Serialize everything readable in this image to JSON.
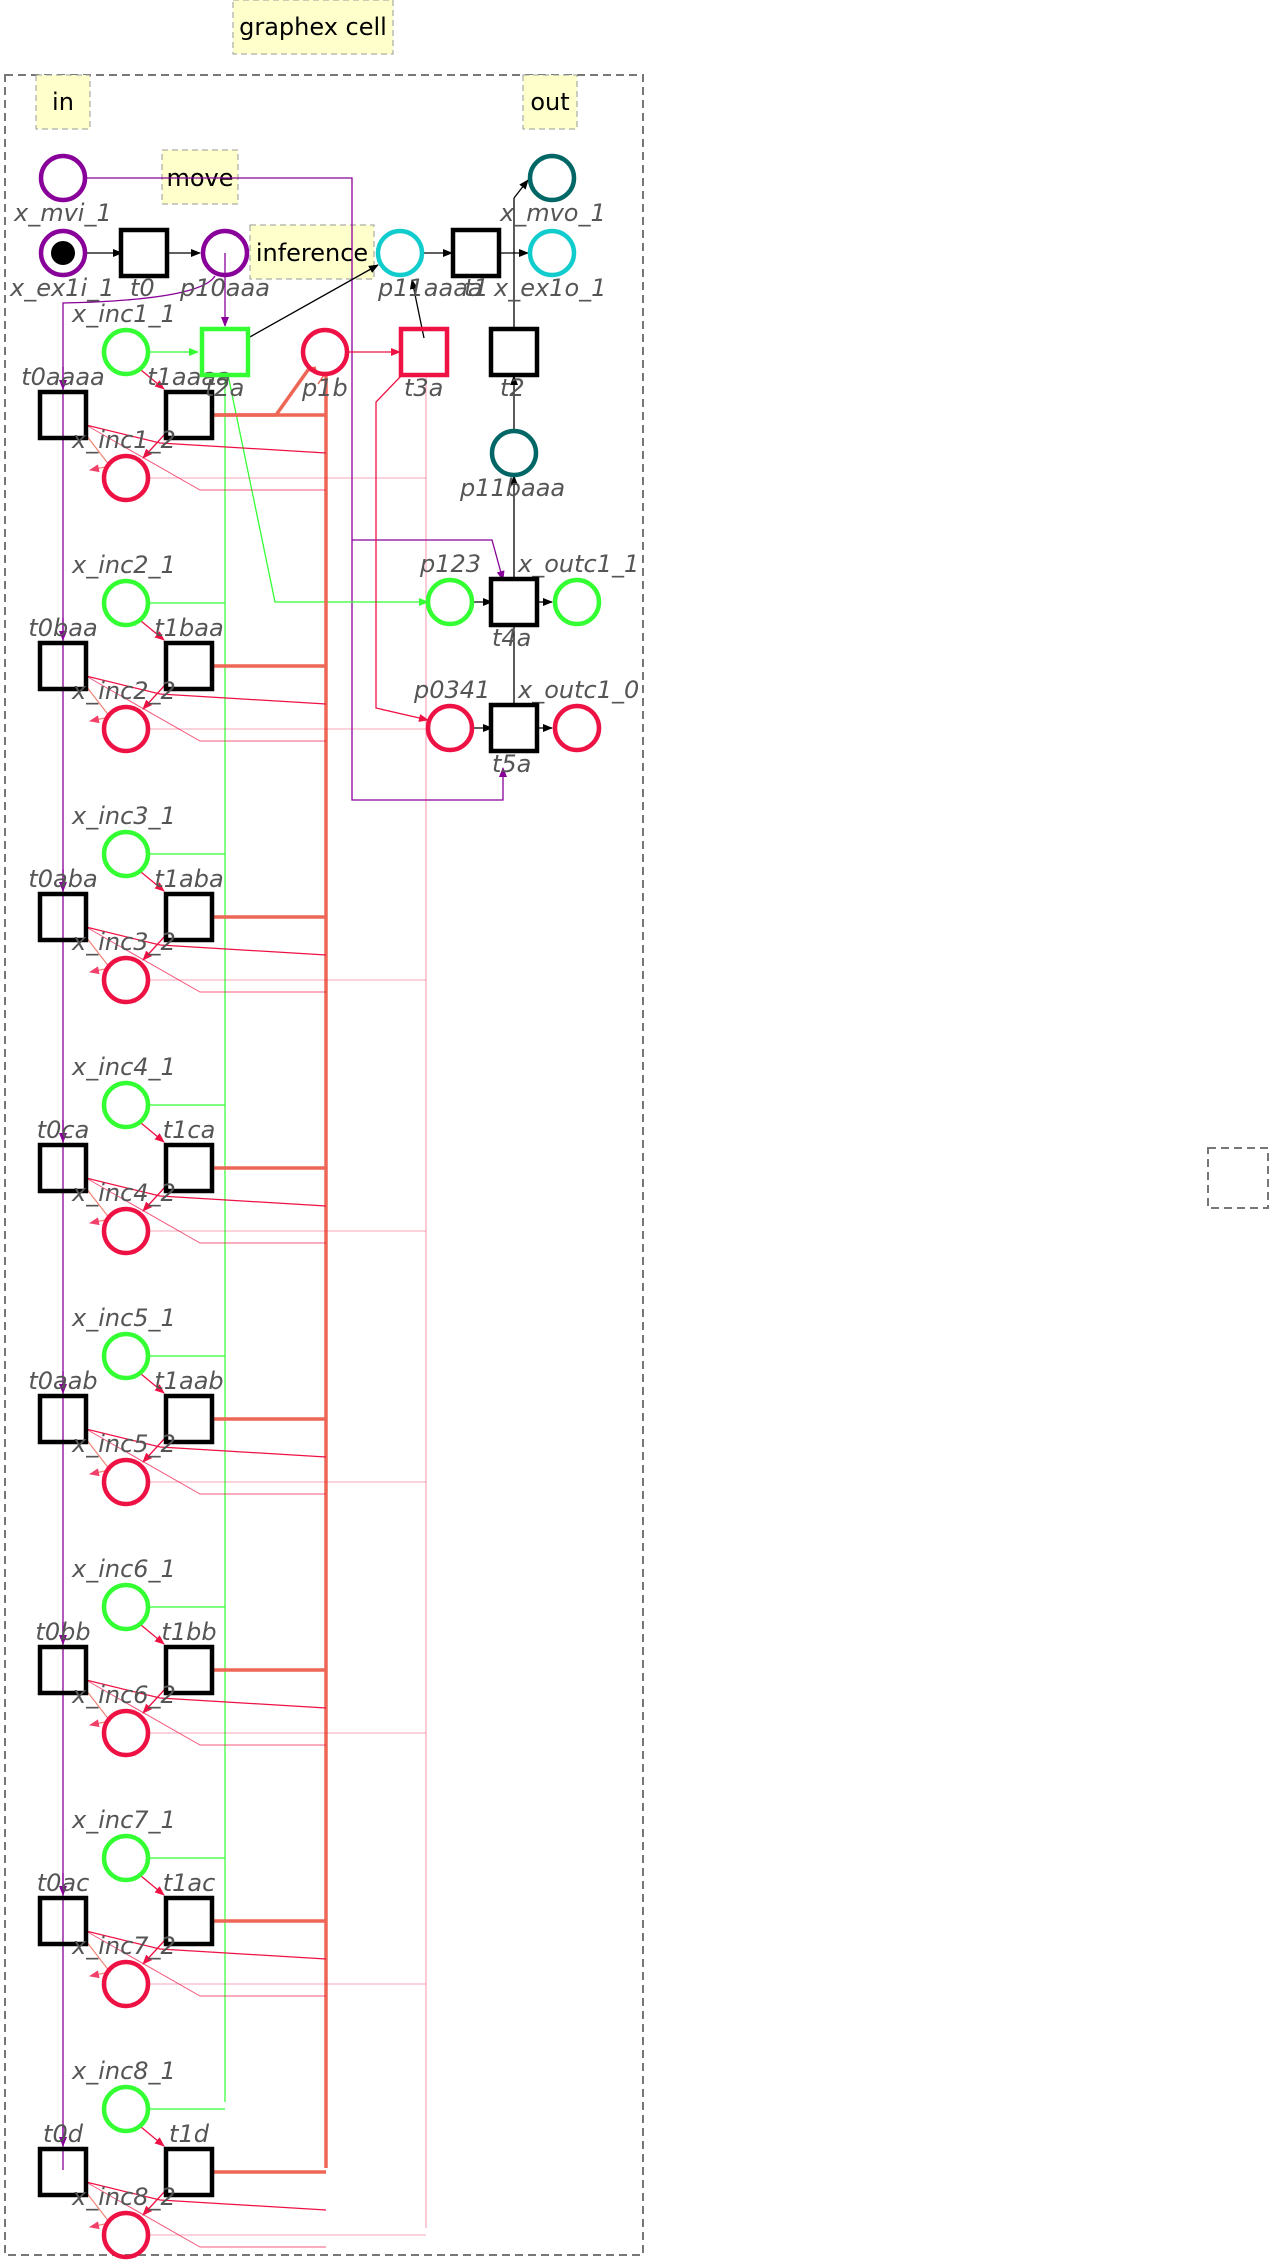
{
  "title": "graphex cell",
  "boxes": {
    "in": "in",
    "out": "out",
    "move": "move",
    "inference": "inference"
  },
  "colors": {
    "green": "#33ff33",
    "red": "#ee1144",
    "purple": "#880099",
    "cyan": "#11cccc",
    "teal": "#006666",
    "salmon": "#ee6655",
    "note_fill": "#ffffcc",
    "black": "#000000"
  },
  "header": {
    "places": [
      {
        "id": "x_mvi_1",
        "label": "x_mvi_1",
        "color": "purple"
      },
      {
        "id": "x_ex1i_1",
        "label": "x_ex1i_1",
        "color": "purple",
        "token": true
      },
      {
        "id": "p10aaa",
        "label": "p10aaa",
        "color": "purple"
      },
      {
        "id": "p11aaaa",
        "label": "p11aaaa",
        "color": "cyan"
      },
      {
        "id": "x_ex1o_1",
        "label": "x_ex1o_1",
        "color": "cyan"
      },
      {
        "id": "x_mvo_1",
        "label": "x_mvo_1",
        "color": "teal"
      },
      {
        "id": "p1b",
        "label": "p1b",
        "color": "red"
      },
      {
        "id": "p11baaa",
        "label": "p11baaa",
        "color": "teal"
      },
      {
        "id": "p123",
        "label": "p123",
        "color": "green"
      },
      {
        "id": "x_outc1_1",
        "label": "x_outc1_1",
        "color": "green"
      },
      {
        "id": "p0341",
        "label": "p0341",
        "color": "red"
      },
      {
        "id": "x_outc1_0",
        "label": "x_outc1_0",
        "color": "red"
      }
    ],
    "transitions": [
      {
        "id": "t0",
        "label": "t0",
        "color": "black"
      },
      {
        "id": "t1",
        "label": "t1",
        "color": "black"
      },
      {
        "id": "t2a",
        "label": "t2a",
        "color": "green"
      },
      {
        "id": "t3a",
        "label": "t3a",
        "color": "red"
      },
      {
        "id": "t2",
        "label": "t2",
        "color": "black"
      },
      {
        "id": "t4a",
        "label": "t4a",
        "color": "black"
      },
      {
        "id": "t5a",
        "label": "t5a",
        "color": "black"
      }
    ]
  },
  "groups": [
    {
      "inc1": "x_inc1_1",
      "inc2": "x_inc1_2",
      "t0": "t0aaaa",
      "t1": "t1aaaa"
    },
    {
      "inc1": "x_inc2_1",
      "inc2": "x_inc2_2",
      "t0": "t0baa",
      "t1": "t1baa"
    },
    {
      "inc1": "x_inc3_1",
      "inc2": "x_inc3_2",
      "t0": "t0aba",
      "t1": "t1aba"
    },
    {
      "inc1": "x_inc4_1",
      "inc2": "x_inc4_2",
      "t0": "t0ca",
      "t1": "t1ca"
    },
    {
      "inc1": "x_inc5_1",
      "inc2": "x_inc5_2",
      "t0": "t0aab",
      "t1": "t1aab"
    },
    {
      "inc1": "x_inc6_1",
      "inc2": "x_inc6_2",
      "t0": "t0bb",
      "t1": "t1bb"
    },
    {
      "inc1": "x_inc7_1",
      "inc2": "x_inc7_2",
      "t0": "t0ac",
      "t1": "t1ac"
    },
    {
      "inc1": "x_inc8_1",
      "inc2": "x_inc8_2",
      "t0": "t0d",
      "t1": "t1d"
    }
  ]
}
